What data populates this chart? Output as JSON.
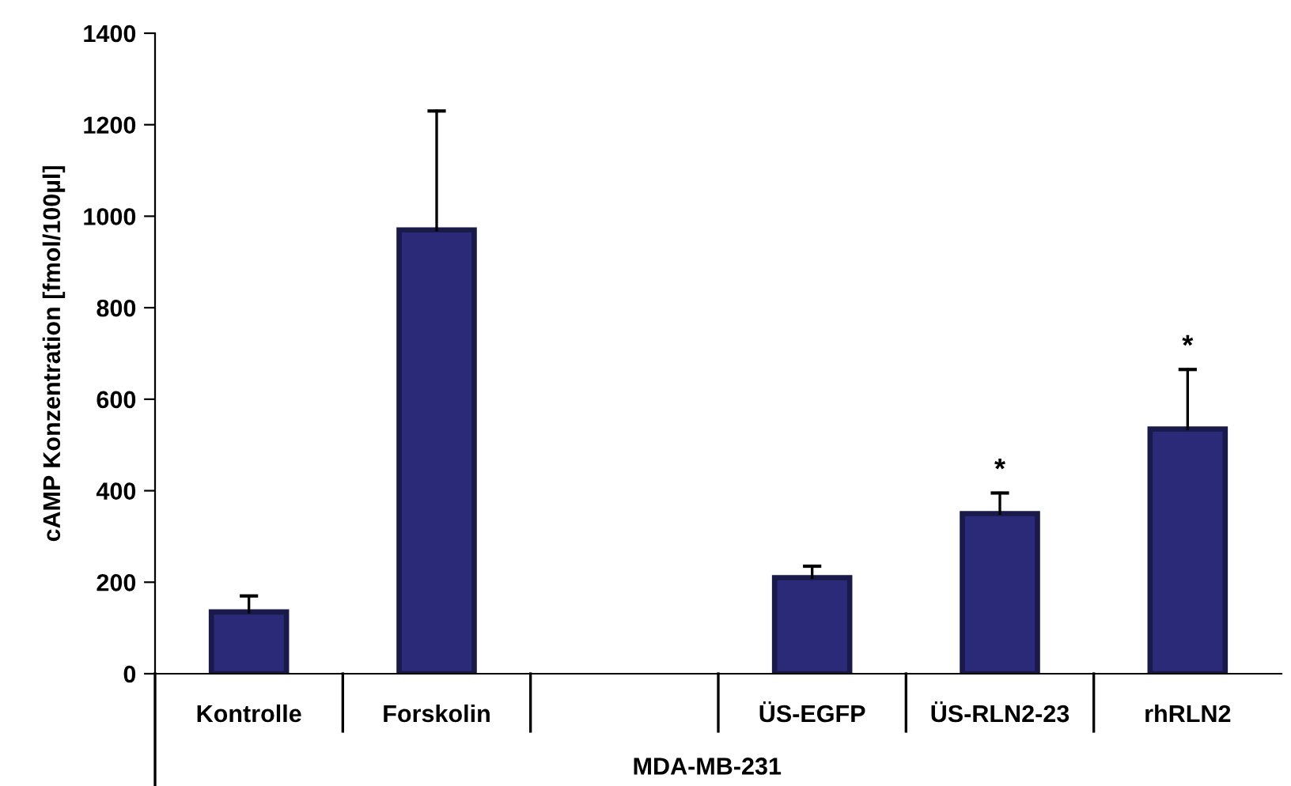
{
  "chart_data": {
    "type": "bar",
    "ylabel": "cAMP Konzentration [fmol/100µl]",
    "xlabel": "MDA-MB-231",
    "categories": [
      "Kontrolle",
      "Forskolin",
      null,
      "ÜS-EGFP",
      "ÜS-RLN2-23",
      "rhRLN2"
    ],
    "values": [
      135,
      970,
      null,
      210,
      350,
      535
    ],
    "errors": [
      [
        135,
        170
      ],
      [
        970,
        1230
      ],
      null,
      [
        210,
        235
      ],
      [
        350,
        395
      ],
      [
        535,
        665
      ]
    ],
    "value_labels": [
      null,
      null,
      null,
      null,
      "*",
      "*"
    ],
    "color": "#2a2a78",
    "ylim": [
      0,
      1400
    ],
    "yticks": [
      0,
      200,
      400,
      600,
      800,
      1000,
      1200,
      1400
    ],
    "grid": false
  }
}
